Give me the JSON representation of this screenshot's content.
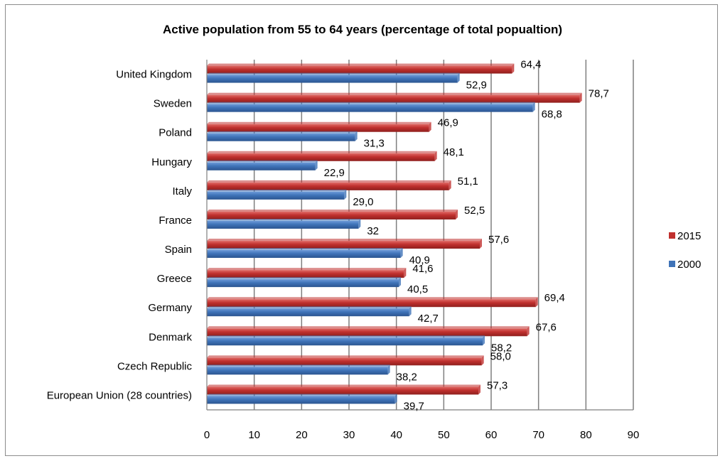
{
  "chart_data": {
    "type": "bar",
    "orientation": "horizontal",
    "title": "Active population from 55 to 64 years (percentage of total popualtion)",
    "categories": [
      "United Kingdom",
      "Sweden",
      "Poland",
      "Hungary",
      "Italy",
      "France",
      "Spain",
      "Greece",
      "Germany",
      "Denmark",
      "Czech Republic",
      "European Union (28 countries)"
    ],
    "series": [
      {
        "name": "2015",
        "color": "#c0302e",
        "values": [
          64.4,
          78.7,
          46.9,
          48.1,
          51.1,
          52.5,
          57.6,
          41.6,
          69.4,
          67.6,
          58.0,
          57.3
        ],
        "labels": [
          "64,4",
          "78,7",
          "46,9",
          "48,1",
          "51,1",
          "52,5",
          "57,6",
          "41,6",
          "69,4",
          "67,6",
          "58,0",
          "57,3"
        ]
      },
      {
        "name": "2000",
        "color": "#3f73b8",
        "values": [
          52.9,
          68.8,
          31.3,
          22.9,
          29.0,
          32,
          40.9,
          40.5,
          42.7,
          58.2,
          38.2,
          39.7
        ],
        "labels": [
          "52,9",
          "68,8",
          "31,3",
          "22,9",
          "29,0",
          "32",
          "40,9",
          "40,5",
          "42,7",
          "58,2",
          "38,2",
          "39,7"
        ]
      }
    ],
    "xlim": [
      0,
      90
    ],
    "xticks": [
      "0",
      "10",
      "20",
      "30",
      "40",
      "50",
      "60",
      "70",
      "80",
      "90"
    ],
    "grid": true,
    "legend_position": "right"
  }
}
